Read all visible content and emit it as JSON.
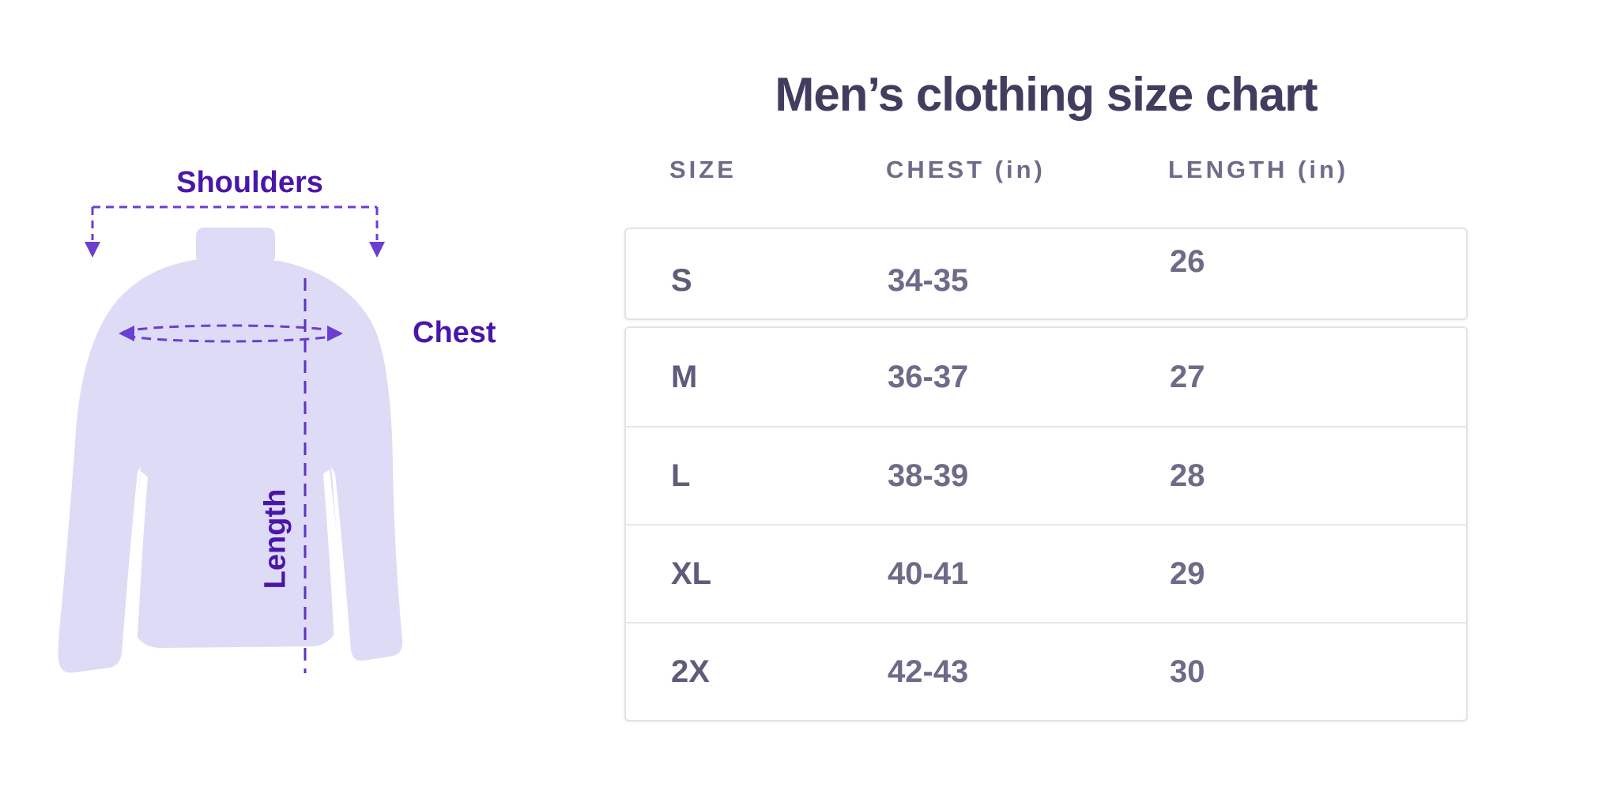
{
  "title": "Men’s clothing size chart",
  "diagram": {
    "labels": {
      "shoulders": "Shoulders",
      "chest": "Chest",
      "length": "Length"
    },
    "colors": {
      "shirt_fill": "#dedbf7",
      "label_text": "#4a16a8",
      "dash_line": "#6a3ed2",
      "length_dash_line": "#5d33c4",
      "arrowhead": "#6a3ed2",
      "notch_white": "#ffffff"
    }
  },
  "table": {
    "headers": [
      "SIZE",
      "CHEST (in)",
      "LENGTH (in)"
    ],
    "rows": [
      {
        "size": "S",
        "chest": "34-35",
        "length": "26"
      },
      {
        "size": "M",
        "chest": "36-37",
        "length": "27"
      },
      {
        "size": "L",
        "chest": "38-39",
        "length": "28"
      },
      {
        "size": "XL",
        "chest": "40-41",
        "length": "29"
      },
      {
        "size": "2X",
        "chest": "42-43",
        "length": "30"
      }
    ],
    "colors": {
      "title_text": "#413d5e",
      "header_text": "#6f6b88",
      "size_text": "#5f5c7a",
      "value_text": "#6e6a87",
      "card_border": "#e3e2e7"
    }
  }
}
